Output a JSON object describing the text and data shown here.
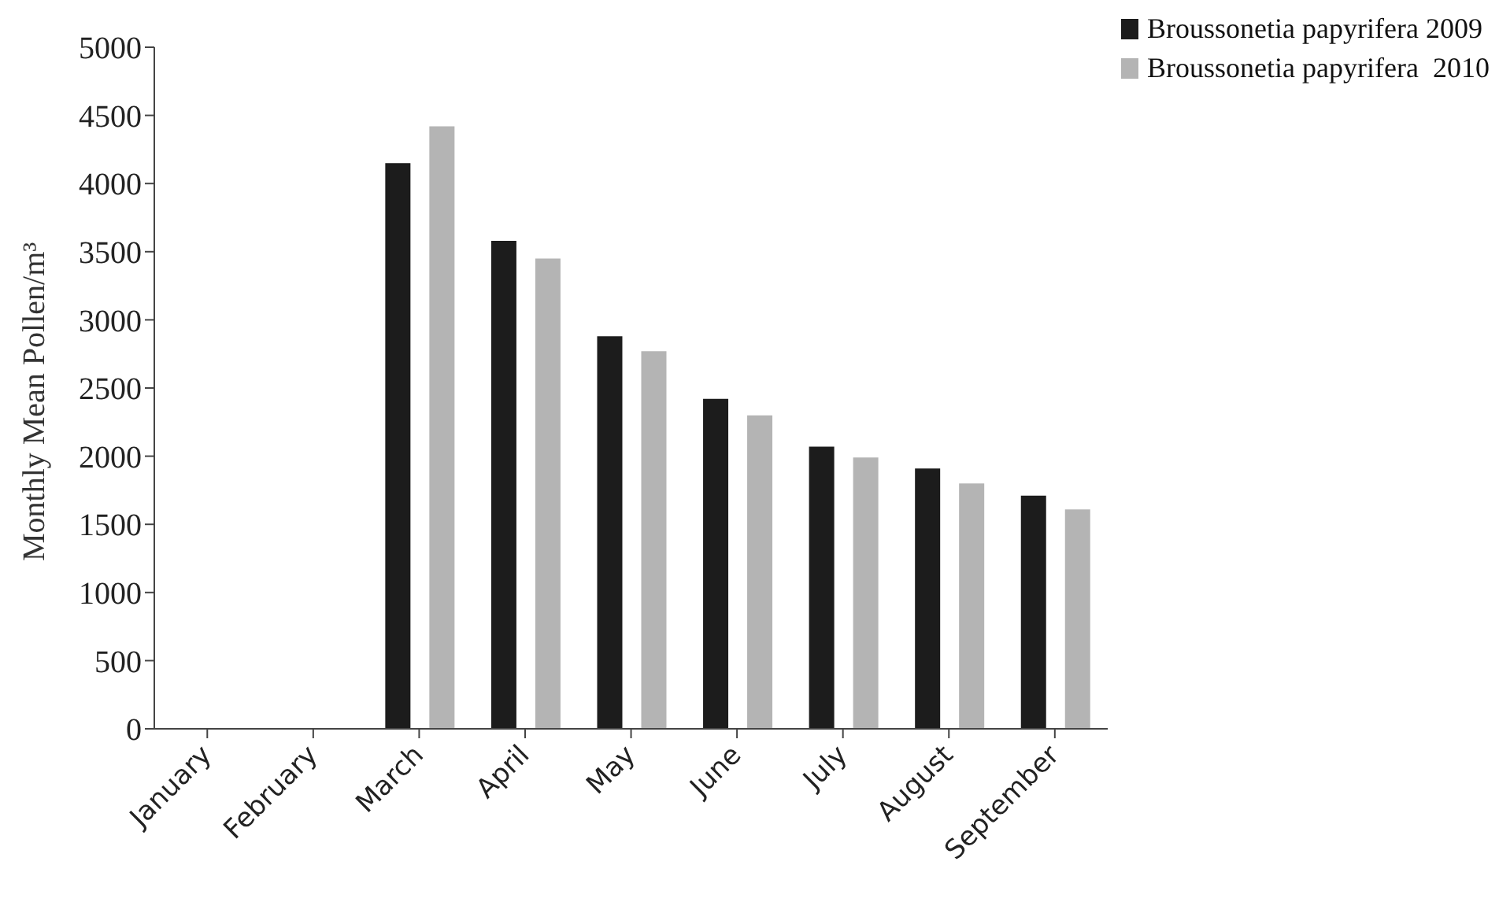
{
  "chart_data": {
    "type": "bar",
    "ylabel": "Monthly Mean Pollen/m³",
    "categories": [
      "January",
      "February",
      "March",
      "April",
      "May",
      "June",
      "July",
      "August",
      "September"
    ],
    "series": [
      {
        "name": "Broussonetia papyrifera 2009",
        "color": "#1c1c1c",
        "values": [
          0,
          0,
          4150,
          3580,
          2880,
          2420,
          2070,
          1910,
          1710
        ]
      },
      {
        "name": "Broussonetia papyrifera  2010",
        "color": "#b4b4b4",
        "values": [
          0,
          0,
          4420,
          3450,
          2770,
          2300,
          1990,
          1800,
          1610
        ]
      }
    ],
    "ylim": [
      0,
      5000
    ],
    "yticks": [
      0,
      500,
      1000,
      1500,
      2000,
      2500,
      3000,
      3500,
      4000,
      4500,
      5000
    ],
    "grid": false,
    "legend": "top right"
  }
}
